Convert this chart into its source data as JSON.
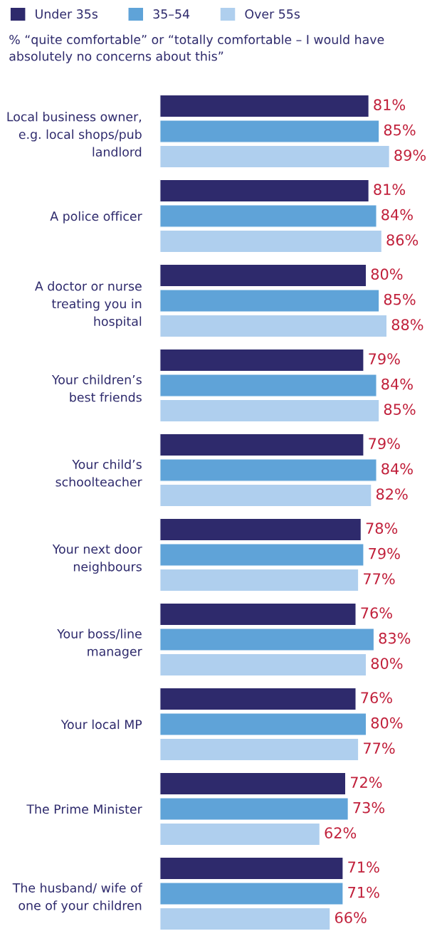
{
  "chart_data": {
    "type": "bar",
    "orientation": "horizontal",
    "subtitle": "% “quite comfortable” or “totally comfortable – I would have absolutely no concerns about this”",
    "categories": [
      "Local business owner,\ne.g. local shops/pub\nlandlord",
      "A police officer",
      "A doctor or nurse\ntreating you in\nhospital",
      "Your children’s\nbest friends",
      "Your child’s\nschoolteacher",
      "Your next door\nneighbours",
      "Your boss/line\nmanager",
      "Your local MP",
      "The Prime Minister",
      "The husband/ wife of\none of your children"
    ],
    "series": [
      {
        "name": "Under 35s",
        "color": "#2e2a6c",
        "values": [
          81,
          81,
          80,
          79,
          79,
          78,
          76,
          76,
          72,
          71
        ],
        "value_labels": [
          "81%",
          "81%",
          "80%",
          "79%",
          "79%",
          "78%",
          "76%",
          "76%",
          "72%",
          "71%"
        ]
      },
      {
        "name": "35–54",
        "color": "#5fa3d8",
        "values": [
          85,
          84,
          85,
          84,
          84,
          79,
          83,
          80,
          73,
          71
        ],
        "value_labels": [
          "85%",
          "84%",
          "85%",
          "84%",
          "84%",
          "79%",
          "83%",
          "80%",
          "73%",
          "71%"
        ]
      },
      {
        "name": "Over 55s",
        "color": "#afcfee",
        "values": [
          89,
          86,
          88,
          85,
          82,
          77,
          80,
          77,
          62,
          66
        ],
        "value_labels": [
          "89%",
          "86%",
          "88%",
          "85%",
          "82%",
          "77%",
          "80%",
          "77%",
          "62%",
          "66%"
        ]
      }
    ],
    "tick_labels": "y",
    "legend": "top left",
    "grid": false
  }
}
